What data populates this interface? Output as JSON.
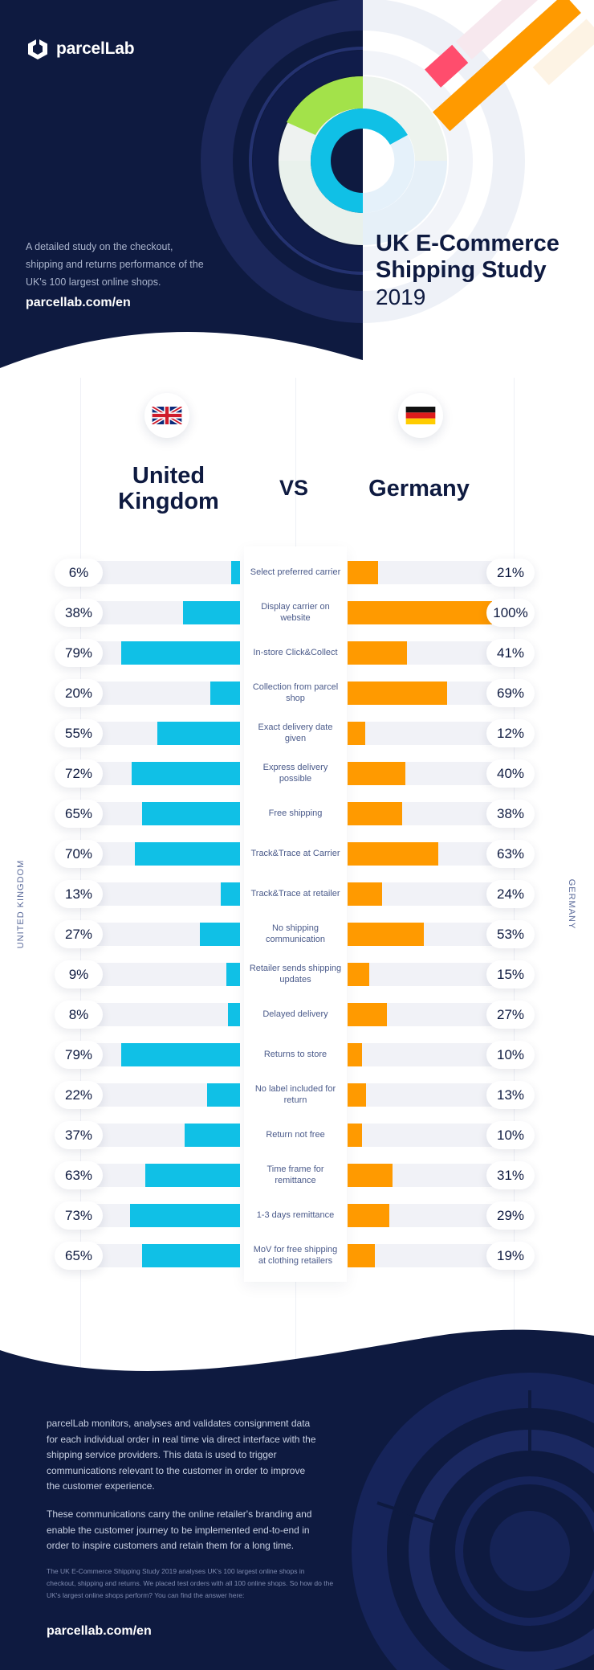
{
  "brand": {
    "name": "parcelLab",
    "url": "parcellab.com/en"
  },
  "hero": {
    "description": "A detailed study on the checkout, shipping and returns performance of the UK's 100 largest online shops.",
    "title": "UK E-Commerce Shipping Study",
    "year": "2019"
  },
  "comparison": {
    "left_country": "United Kingdom",
    "vs": "VS",
    "right_country": "Germany",
    "left_side_label": "UNITED KINGDOM",
    "right_side_label": "GERMANY"
  },
  "colors": {
    "navy": "#0e1a40",
    "uk_bar": "#10c0e6",
    "de_bar": "#ff9a00",
    "track": "#f1f2f7"
  },
  "chart_data": {
    "type": "bar",
    "orientation": "horizontal-diverging",
    "categories": [
      "Select preferred carrier",
      "Display carrier on website",
      "In-store Click&Collect",
      "Collection from parcel shop",
      "Exact delivery date given",
      "Express delivery possible",
      "Free shipping",
      "Track&Trace at Carrier",
      "Track&Trace at retailer",
      "No shipping communication",
      "Retailer sends shipping updates",
      "Delayed delivery",
      "Returns to store",
      "No label included for return",
      "Return not free",
      "Time frame for remittance",
      "1-3 days remittance",
      "MoV for free shipping at clothing retailers"
    ],
    "series": [
      {
        "name": "United Kingdom",
        "values": [
          6,
          38,
          79,
          20,
          55,
          72,
          65,
          70,
          13,
          27,
          9,
          8,
          79,
          22,
          37,
          63,
          73,
          65
        ],
        "labels": [
          "6%",
          "38%",
          "79%",
          "20%",
          "55%",
          "72%",
          "65%",
          "70%",
          "13%",
          "27%",
          "9%",
          "8%",
          "79%",
          "22%",
          "37%",
          "63%",
          "73%",
          "65%"
        ]
      },
      {
        "name": "Germany",
        "values": [
          21,
          100,
          41,
          69,
          12,
          40,
          38,
          63,
          24,
          53,
          15,
          27,
          10,
          13,
          10,
          31,
          29,
          19
        ],
        "labels": [
          "21%",
          "100%",
          "41%",
          "69%",
          "12%",
          "40%",
          "38%",
          "63%",
          "24%",
          "53%",
          "15%",
          "27%",
          "10%",
          "13%",
          "10%",
          "31%",
          "29%",
          "19%"
        ]
      }
    ],
    "xlim": [
      0,
      100
    ],
    "unit": "%"
  },
  "footer": {
    "paragraph1": "parcelLab monitors, analyses and validates consignment data for each individual order in real time via direct interface with the shipping service providers. This data is used to trigger communications relevant to the customer in order to improve the customer experience.",
    "paragraph2": "These communications carry the online retailer's branding and enable the customer journey to be implemented end-to-end in order to inspire customers and retain them for a long time.",
    "note": "The UK E-Commerce Shipping Study 2019 analyses UK's 100 largest online shops in checkout, shipping and returns. We placed test orders with all 100 online shops. So how do the UK's largest online shops perform? You can find the answer here:",
    "url": "parcellab.com/en"
  }
}
